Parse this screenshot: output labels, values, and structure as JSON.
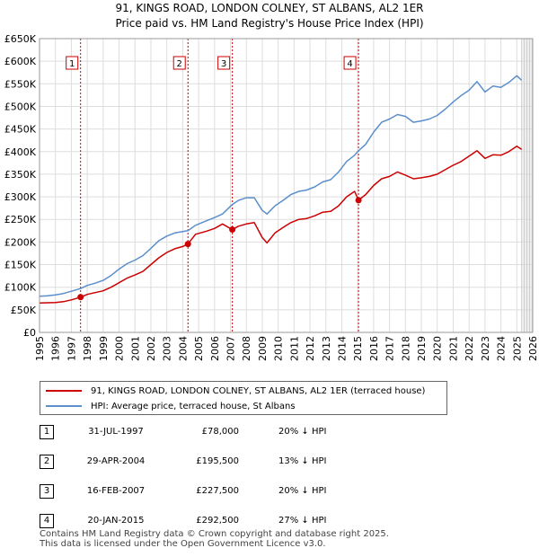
{
  "title_line1": "91, KINGS ROAD, LONDON COLNEY, ST ALBANS, AL2 1ER",
  "title_line2": "Price paid vs. HM Land Registry's House Price Index (HPI)",
  "colors": {
    "price_paid": "#cc0000",
    "hpi": "#5b8fcc",
    "grid": "#dddddd",
    "marker_line": "#cc0000"
  },
  "chart_data": {
    "type": "line",
    "xlim": [
      1995,
      2026
    ],
    "ylim": [
      0,
      650000
    ],
    "y_ticks": [
      0,
      50000,
      100000,
      150000,
      200000,
      250000,
      300000,
      350000,
      400000,
      450000,
      500000,
      550000,
      600000,
      650000
    ],
    "y_tick_labels": [
      "£0",
      "£50K",
      "£100K",
      "£150K",
      "£200K",
      "£250K",
      "£300K",
      "£350K",
      "£400K",
      "£450K",
      "£500K",
      "£550K",
      "£600K",
      "£650K"
    ],
    "x_ticks": [
      1995,
      1996,
      1997,
      1998,
      1999,
      2000,
      2001,
      2002,
      2003,
      2004,
      2005,
      2006,
      2007,
      2008,
      2009,
      2010,
      2011,
      2012,
      2013,
      2014,
      2015,
      2016,
      2017,
      2018,
      2019,
      2020,
      2021,
      2022,
      2023,
      2024,
      2025,
      2026
    ],
    "x_tick_labels": [
      "1995",
      "1996",
      "1997",
      "1998",
      "1999",
      "2000",
      "2001",
      "2002",
      "2003",
      "2004",
      "2005",
      "2006",
      "2007",
      "2008",
      "2009",
      "2010",
      "2011",
      "2012",
      "2013",
      "2014",
      "2015",
      "2016",
      "2017",
      "2018",
      "2019",
      "2020",
      "2021",
      "2022",
      "2023",
      "2024",
      "2025",
      "2026"
    ],
    "series": [
      {
        "name": "91, KINGS ROAD, LONDON COLNEY, ST ALBANS, AL2 1ER (terraced house)",
        "x": [
          1995.0,
          1995.5,
          1996.0,
          1996.5,
          1997.0,
          1997.58,
          1998.0,
          1998.5,
          1999.0,
          1999.5,
          2000.0,
          2000.5,
          2001.0,
          2001.5,
          2002.0,
          2002.5,
          2003.0,
          2003.5,
          2004.0,
          2004.33,
          2004.8,
          2005.5,
          2006.0,
          2006.5,
          2007.12,
          2007.5,
          2008.0,
          2008.5,
          2009.0,
          2009.3,
          2009.8,
          2010.3,
          2010.8,
          2011.3,
          2011.8,
          2012.3,
          2012.8,
          2013.3,
          2013.8,
          2014.3,
          2014.8,
          2015.05,
          2015.5,
          2016.0,
          2016.5,
          2017.0,
          2017.5,
          2018.0,
          2018.5,
          2019.0,
          2019.5,
          2020.0,
          2020.5,
          2021.0,
          2021.5,
          2022.0,
          2022.5,
          2023.0,
          2023.5,
          2024.0,
          2024.5,
          2025.0,
          2025.3
        ],
        "values": [
          65000,
          65500,
          66000,
          68000,
          72000,
          78000,
          84000,
          88000,
          92000,
          100000,
          110000,
          120000,
          127000,
          135000,
          150000,
          165000,
          177000,
          185000,
          190000,
          195500,
          217000,
          224000,
          230000,
          240000,
          227500,
          235000,
          240000,
          243000,
          210000,
          198000,
          220000,
          232000,
          243000,
          250000,
          252000,
          258000,
          266000,
          268000,
          280000,
          300000,
          312000,
          292500,
          305000,
          325000,
          340000,
          345000,
          355000,
          348000,
          340000,
          342000,
          345000,
          350000,
          360000,
          370000,
          378000,
          390000,
          402000,
          385000,
          393000,
          392000,
          400000,
          412000,
          405000
        ]
      },
      {
        "name": "HPI: Average price, terraced house, St Albans",
        "x": [
          1995.0,
          1995.5,
          1996.0,
          1996.5,
          1997.0,
          1997.58,
          1998.0,
          1998.5,
          1999.0,
          1999.5,
          2000.0,
          2000.5,
          2001.0,
          2001.5,
          2002.0,
          2002.5,
          2003.0,
          2003.5,
          2004.0,
          2004.33,
          2004.8,
          2005.5,
          2006.0,
          2006.5,
          2007.12,
          2007.5,
          2008.0,
          2008.5,
          2009.0,
          2009.3,
          2009.8,
          2010.3,
          2010.8,
          2011.3,
          2011.8,
          2012.3,
          2012.8,
          2013.3,
          2013.8,
          2014.3,
          2014.8,
          2015.05,
          2015.5,
          2016.0,
          2016.5,
          2017.0,
          2017.5,
          2018.0,
          2018.5,
          2019.0,
          2019.5,
          2020.0,
          2020.5,
          2021.0,
          2021.5,
          2022.0,
          2022.5,
          2023.0,
          2023.5,
          2024.0,
          2024.5,
          2025.0,
          2025.3
        ],
        "values": [
          80000,
          81000,
          83000,
          86000,
          91000,
          97000,
          104000,
          109000,
          115000,
          126000,
          140000,
          152000,
          160000,
          170000,
          186000,
          203000,
          213000,
          220000,
          223000,
          225000,
          237000,
          247000,
          254000,
          262000,
          283000,
          292000,
          298000,
          298000,
          270000,
          262000,
          280000,
          292000,
          305000,
          312000,
          315000,
          322000,
          333000,
          338000,
          355000,
          378000,
          392000,
          402000,
          416000,
          443000,
          465000,
          472000,
          482000,
          478000,
          465000,
          468000,
          472000,
          480000,
          494000,
          510000,
          524000,
          536000,
          555000,
          532000,
          545000,
          542000,
          553000,
          568000,
          558000
        ]
      }
    ],
    "sale_markers": [
      {
        "label": "1",
        "x": 1997.58,
        "value": 78000
      },
      {
        "label": "2",
        "x": 2004.33,
        "value": 195500
      },
      {
        "label": "3",
        "x": 2007.12,
        "value": 227500
      },
      {
        "label": "4",
        "x": 2015.05,
        "value": 292500
      }
    ]
  },
  "legend": {
    "price_paid_label": "91, KINGS ROAD, LONDON COLNEY, ST ALBANS, AL2 1ER (terraced house)",
    "hpi_label": "HPI: Average price, terraced house, St Albans"
  },
  "sales": [
    {
      "num": "1",
      "date": "31-JUL-1997",
      "price": "£78,000",
      "hpi": "20% ↓ HPI"
    },
    {
      "num": "2",
      "date": "29-APR-2004",
      "price": "£195,500",
      "hpi": "13% ↓ HPI"
    },
    {
      "num": "3",
      "date": "16-FEB-2007",
      "price": "£227,500",
      "hpi": "20% ↓ HPI"
    },
    {
      "num": "4",
      "date": "20-JAN-2015",
      "price": "£292,500",
      "hpi": "27% ↓ HPI"
    }
  ],
  "footer_line1": "Contains HM Land Registry data © Crown copyright and database right 2025.",
  "footer_line2": "This data is licensed under the Open Government Licence v3.0."
}
